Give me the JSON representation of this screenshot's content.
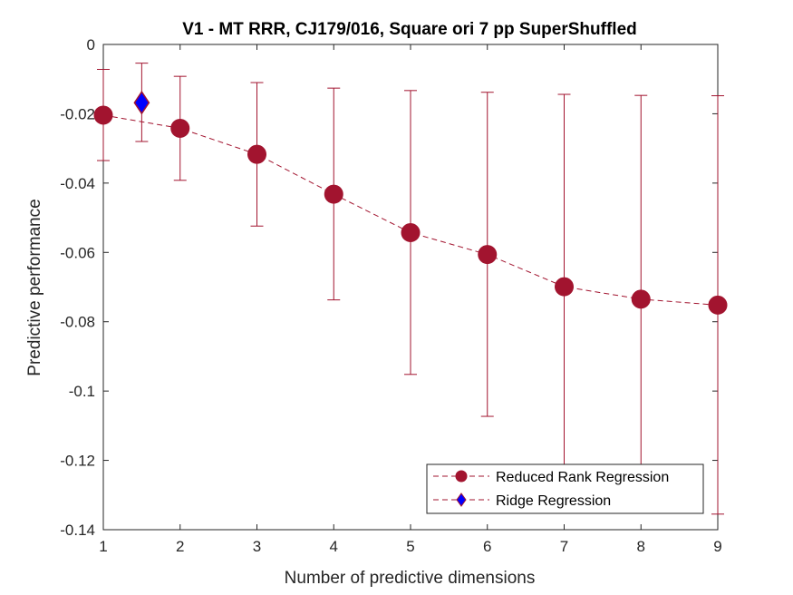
{
  "chart_data": {
    "type": "line",
    "title": "V1 - MT RRR, CJ179/016, Square ori 7 pp  SuperShuffled",
    "xlabel": "Number of predictive dimensions",
    "ylabel": "Predictive performance",
    "xlim": [
      1,
      9
    ],
    "ylim": [
      -0.14,
      0
    ],
    "x_ticks": [
      1,
      2,
      3,
      4,
      5,
      6,
      7,
      8,
      9
    ],
    "x_tick_labels": [
      "1",
      "2",
      "3",
      "4",
      "5",
      "6",
      "7",
      "8",
      "9"
    ],
    "y_ticks": [
      0,
      -0.02,
      -0.04,
      -0.06,
      -0.08,
      -0.1,
      -0.12,
      -0.14
    ],
    "y_tick_labels": [
      "0",
      "-0.02",
      "-0.04",
      "-0.06",
      "-0.08",
      "-0.1",
      "-0.12",
      "-0.14"
    ],
    "grid": false,
    "legend_position": "bottom-right",
    "series": [
      {
        "name": "Reduced Rank Regression",
        "color": "#a2142f",
        "marker": "circle",
        "line_style": "dashed",
        "x": [
          1,
          2,
          3,
          4,
          5,
          6,
          7,
          8,
          9
        ],
        "y": [
          -0.0204,
          -0.0242,
          -0.0317,
          -0.0432,
          -0.0543,
          -0.0606,
          -0.0699,
          -0.0735,
          -0.0752
        ],
        "err_low": [
          -0.0335,
          -0.0392,
          -0.0524,
          -0.0737,
          -0.0952,
          -0.1073,
          -0.1228,
          -0.1228,
          -0.1355
        ],
        "err_high": [
          -0.0072,
          -0.0092,
          -0.011,
          -0.0126,
          -0.0133,
          -0.0138,
          -0.0144,
          -0.0147,
          -0.0148
        ]
      },
      {
        "name": "Ridge Regression",
        "color": "#0000ff",
        "edge_color": "#a2142f",
        "marker": "diamond",
        "x": [
          1.5
        ],
        "y": [
          -0.0168
        ],
        "err_low": [
          -0.028
        ],
        "err_high": [
          -0.0054
        ]
      }
    ]
  }
}
